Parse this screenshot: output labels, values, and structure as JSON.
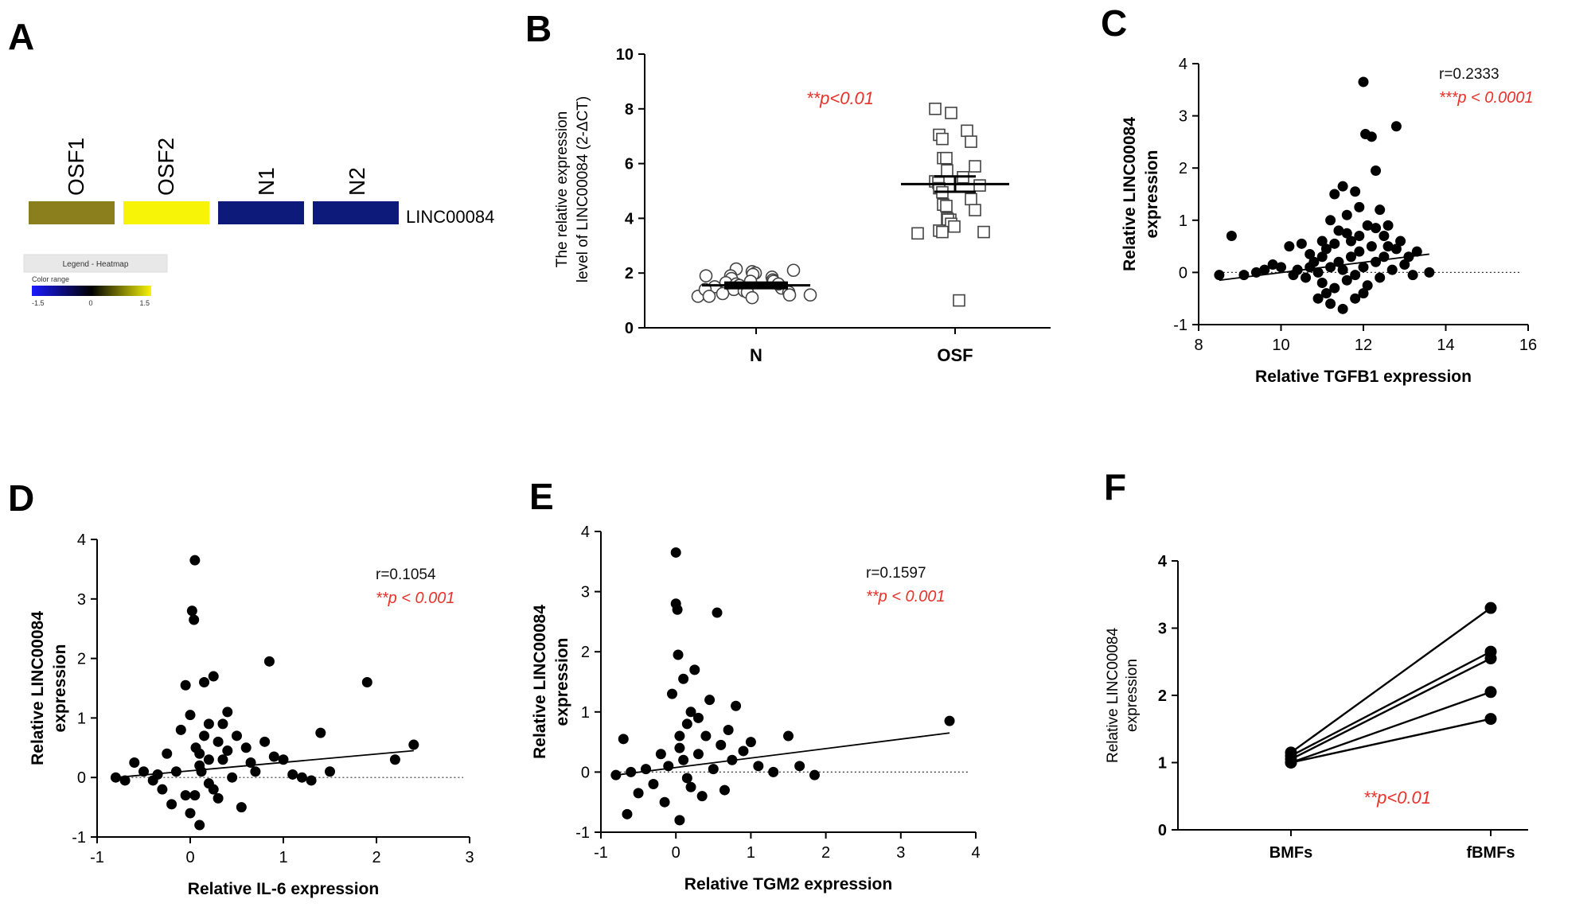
{
  "colors": {
    "osf1": "#8a7f1c",
    "osf2": "#f7f408",
    "normal": "#0e1a7a",
    "red_stat": "#e8312a",
    "dot": "#000000"
  },
  "panel_labels": {
    "a": "A",
    "b": "B",
    "c": "C",
    "d": "D",
    "e": "E",
    "f": "F"
  },
  "heatmap": {
    "samples": [
      "OSF1",
      "OSF2",
      "N1",
      "N2"
    ],
    "gene": "LINC00084",
    "legend_title": "Legend - Heatmap",
    "color_range_label": "Color range",
    "range_ticks": [
      "-1.5",
      "0",
      "1.5"
    ]
  },
  "chart_data": [
    {
      "id": "B",
      "type": "scatter",
      "title": "",
      "ylabel_line1": "The relative expression",
      "ylabel_line2": "level of LINC00084  (2-ΔCT)",
      "categories": [
        "N",
        "OSF"
      ],
      "ylim": [
        0,
        10
      ],
      "yticks": [
        "0",
        "2",
        "4",
        "6",
        "8",
        "10"
      ],
      "annotation": "**p<0.01",
      "series": [
        {
          "name": "N",
          "marker": "circle",
          "mean": 1.55,
          "sem": 0.08,
          "values": [
            2.15,
            2.05,
            2.0,
            1.95,
            1.9,
            1.85,
            1.8,
            1.75,
            1.7,
            1.7,
            1.65,
            1.6,
            1.55,
            1.5,
            1.5,
            1.45,
            1.4,
            1.35,
            1.3,
            1.3,
            1.25,
            1.2,
            1.15,
            1.1,
            2.1,
            1.6,
            1.4,
            1.2,
            1.9,
            1.15
          ]
        },
        {
          "name": "OSF",
          "marker": "square",
          "mean": 5.25,
          "sem": 0.28,
          "values": [
            8.0,
            7.85,
            7.2,
            7.05,
            6.9,
            6.8,
            6.2,
            6.2,
            5.9,
            5.75,
            5.5,
            5.35,
            5.3,
            5.2,
            5.1,
            4.95,
            4.7,
            4.5,
            4.45,
            4.3,
            4.0,
            3.95,
            3.95,
            3.8,
            3.7,
            3.55,
            3.5,
            3.5,
            3.45,
            1.0
          ]
        }
      ]
    },
    {
      "id": "C",
      "type": "scatter",
      "xlabel": "Relative TGFB1 expression",
      "ylabel_line1": "Relative LINC00084",
      "ylabel_line2": "expression",
      "xlim": [
        8,
        16
      ],
      "ylim": [
        -1,
        4
      ],
      "xticks": [
        "8",
        "10",
        "12",
        "14",
        "16"
      ],
      "yticks": [
        "-1",
        "0",
        "1",
        "2",
        "3",
        "4"
      ],
      "r_text": "r=0.2333",
      "p_text": "***p < 0.0001",
      "fit": {
        "x0": 8.5,
        "y0": -0.15,
        "x1": 13.6,
        "y1": 0.35
      },
      "baseline_y": 0,
      "points": [
        [
          8.5,
          -0.05
        ],
        [
          8.8,
          0.7
        ],
        [
          9.1,
          -0.05
        ],
        [
          9.4,
          0.0
        ],
        [
          9.6,
          0.05
        ],
        [
          9.8,
          0.15
        ],
        [
          10.0,
          0.1
        ],
        [
          10.2,
          0.5
        ],
        [
          10.3,
          -0.05
        ],
        [
          10.4,
          0.05
        ],
        [
          10.5,
          0.55
        ],
        [
          10.6,
          -0.1
        ],
        [
          10.7,
          0.1
        ],
        [
          10.8,
          0.2
        ],
        [
          10.9,
          0.0
        ],
        [
          11.0,
          0.3
        ],
        [
          11.0,
          -0.2
        ],
        [
          11.1,
          0.45
        ],
        [
          11.1,
          -0.4
        ],
        [
          11.2,
          1.0
        ],
        [
          11.2,
          0.1
        ],
        [
          11.3,
          1.5
        ],
        [
          11.3,
          -0.3
        ],
        [
          11.4,
          0.8
        ],
        [
          11.4,
          0.2
        ],
        [
          11.5,
          1.65
        ],
        [
          11.5,
          0.05
        ],
        [
          11.6,
          1.1
        ],
        [
          11.6,
          -0.15
        ],
        [
          11.7,
          0.6
        ],
        [
          11.7,
          0.3
        ],
        [
          11.8,
          1.55
        ],
        [
          11.8,
          -0.05
        ],
        [
          11.9,
          1.25
        ],
        [
          11.9,
          0.4
        ],
        [
          12.0,
          3.65
        ],
        [
          12.0,
          0.1
        ],
        [
          12.05,
          2.65
        ],
        [
          12.1,
          0.9
        ],
        [
          12.1,
          -0.25
        ],
        [
          12.2,
          2.6
        ],
        [
          12.2,
          0.5
        ],
        [
          12.3,
          1.95
        ],
        [
          12.3,
          0.2
        ],
        [
          12.4,
          1.2
        ],
        [
          12.4,
          -0.1
        ],
        [
          12.5,
          0.7
        ],
        [
          12.5,
          0.3
        ],
        [
          12.6,
          0.5
        ],
        [
          12.7,
          0.05
        ],
        [
          12.8,
          2.8
        ],
        [
          12.8,
          0.45
        ],
        [
          12.9,
          0.6
        ],
        [
          13.0,
          0.15
        ],
        [
          13.1,
          0.3
        ],
        [
          13.2,
          -0.05
        ],
        [
          13.3,
          0.4
        ],
        [
          13.6,
          0.0
        ],
        [
          11.0,
          0.6
        ],
        [
          10.9,
          -0.5
        ],
        [
          11.2,
          -0.6
        ],
        [
          11.5,
          -0.7
        ],
        [
          11.8,
          -0.5
        ],
        [
          12.0,
          -0.4
        ],
        [
          11.6,
          0.75
        ],
        [
          10.7,
          0.35
        ],
        [
          11.3,
          0.55
        ],
        [
          12.6,
          0.9
        ],
        [
          11.9,
          0.7
        ],
        [
          12.3,
          0.85
        ]
      ]
    },
    {
      "id": "D",
      "type": "scatter",
      "xlabel": "Relative IL-6 expression",
      "ylabel_line1": "Relative LINC00084",
      "ylabel_line2": "expression",
      "xlim": [
        -1,
        3
      ],
      "ylim": [
        -1,
        4
      ],
      "xticks": [
        "-1",
        "0",
        "1",
        "2",
        "3"
      ],
      "yticks": [
        "-1",
        "0",
        "1",
        "2",
        "3",
        "4"
      ],
      "r_text": "r=0.1054",
      "p_text": "**p < 0.001",
      "fit": {
        "x0": -0.8,
        "y0": 0.0,
        "x1": 2.4,
        "y1": 0.45
      },
      "baseline_y": 0,
      "points": [
        [
          -0.8,
          0.0
        ],
        [
          -0.7,
          -0.05
        ],
        [
          -0.6,
          0.25
        ],
        [
          -0.5,
          0.1
        ],
        [
          -0.4,
          -0.05
        ],
        [
          -0.35,
          0.05
        ],
        [
          -0.3,
          -0.2
        ],
        [
          -0.25,
          0.4
        ],
        [
          -0.2,
          -0.45
        ],
        [
          -0.15,
          0.1
        ],
        [
          -0.1,
          0.8
        ],
        [
          -0.05,
          -0.3
        ],
        [
          -0.05,
          1.55
        ],
        [
          0.0,
          -0.6
        ],
        [
          0.0,
          1.05
        ],
        [
          0.02,
          2.8
        ],
        [
          0.04,
          2.65
        ],
        [
          0.05,
          3.65
        ],
        [
          0.06,
          0.5
        ],
        [
          0.1,
          -0.8
        ],
        [
          0.1,
          0.2
        ],
        [
          0.15,
          1.6
        ],
        [
          0.2,
          0.9
        ],
        [
          0.2,
          -0.1
        ],
        [
          0.25,
          1.7
        ],
        [
          0.3,
          0.6
        ],
        [
          0.3,
          -0.35
        ],
        [
          0.35,
          0.3
        ],
        [
          0.4,
          1.1
        ],
        [
          0.45,
          0.0
        ],
        [
          0.5,
          0.7
        ],
        [
          0.55,
          -0.5
        ],
        [
          0.6,
          0.5
        ],
        [
          0.65,
          0.25
        ],
        [
          0.7,
          0.1
        ],
        [
          0.8,
          0.6
        ],
        [
          0.85,
          1.95
        ],
        [
          0.9,
          0.35
        ],
        [
          1.0,
          0.3
        ],
        [
          1.1,
          0.05
        ],
        [
          1.2,
          0.0
        ],
        [
          1.3,
          -0.05
        ],
        [
          1.4,
          0.75
        ],
        [
          1.5,
          0.1
        ],
        [
          1.9,
          1.6
        ],
        [
          2.2,
          0.3
        ],
        [
          2.4,
          0.55
        ],
        [
          0.1,
          0.4
        ],
        [
          0.15,
          0.7
        ],
        [
          0.2,
          0.3
        ],
        [
          0.05,
          -0.3
        ],
        [
          0.12,
          0.1
        ],
        [
          0.25,
          -0.2
        ],
        [
          0.35,
          0.9
        ],
        [
          0.4,
          0.45
        ]
      ]
    },
    {
      "id": "E",
      "type": "scatter",
      "xlabel": "Relative TGM2 expression",
      "ylabel_line1": "Relative LINC00084",
      "ylabel_line2": "expression",
      "xlim": [
        -1,
        4
      ],
      "ylim": [
        -1,
        4
      ],
      "xticks": [
        "-1",
        "0",
        "1",
        "2",
        "3",
        "4"
      ],
      "yticks": [
        "-1",
        "0",
        "1",
        "2",
        "3",
        "4"
      ],
      "r_text": "r=0.1597",
      "p_text": "**p < 0.001",
      "fit": {
        "x0": -0.8,
        "y0": -0.05,
        "x1": 3.65,
        "y1": 0.65
      },
      "baseline_y": 0,
      "points": [
        [
          -0.8,
          -0.05
        ],
        [
          -0.7,
          0.55
        ],
        [
          -0.65,
          -0.7
        ],
        [
          -0.6,
          0.0
        ],
        [
          -0.5,
          -0.35
        ],
        [
          -0.4,
          0.05
        ],
        [
          -0.3,
          -0.2
        ],
        [
          -0.2,
          0.3
        ],
        [
          -0.15,
          -0.5
        ],
        [
          -0.1,
          0.1
        ],
        [
          -0.05,
          1.3
        ],
        [
          0.0,
          3.65
        ],
        [
          0.0,
          2.8
        ],
        [
          0.02,
          2.7
        ],
        [
          0.03,
          1.95
        ],
        [
          0.05,
          -0.8
        ],
        [
          0.05,
          0.4
        ],
        [
          0.1,
          1.55
        ],
        [
          0.15,
          0.8
        ],
        [
          0.2,
          -0.25
        ],
        [
          0.2,
          1.0
        ],
        [
          0.25,
          1.7
        ],
        [
          0.3,
          0.3
        ],
        [
          0.35,
          -0.4
        ],
        [
          0.4,
          0.6
        ],
        [
          0.45,
          1.2
        ],
        [
          0.5,
          0.05
        ],
        [
          0.55,
          2.65
        ],
        [
          0.6,
          0.45
        ],
        [
          0.65,
          -0.3
        ],
        [
          0.7,
          0.7
        ],
        [
          0.75,
          0.2
        ],
        [
          0.8,
          1.1
        ],
        [
          0.9,
          0.35
        ],
        [
          1.0,
          0.5
        ],
        [
          1.1,
          0.1
        ],
        [
          1.3,
          0.0
        ],
        [
          1.5,
          0.6
        ],
        [
          1.65,
          0.1
        ],
        [
          1.85,
          -0.05
        ],
        [
          3.65,
          0.85
        ],
        [
          0.1,
          0.2
        ],
        [
          0.15,
          -0.1
        ],
        [
          0.3,
          0.9
        ],
        [
          0.05,
          0.6
        ]
      ]
    },
    {
      "id": "F",
      "type": "line",
      "ylabel_line1": "Relative LINC00084",
      "ylabel_line2": "expression",
      "categories": [
        "BMFs",
        "fBMFs"
      ],
      "ylim": [
        0,
        4
      ],
      "yticks": [
        "0",
        "1",
        "2",
        "3",
        "4"
      ],
      "annotation": "**p<0.01",
      "pairs": [
        [
          1.15,
          3.3
        ],
        [
          1.1,
          2.65
        ],
        [
          1.05,
          2.55
        ],
        [
          1.0,
          2.05
        ],
        [
          1.0,
          1.65
        ]
      ]
    }
  ]
}
